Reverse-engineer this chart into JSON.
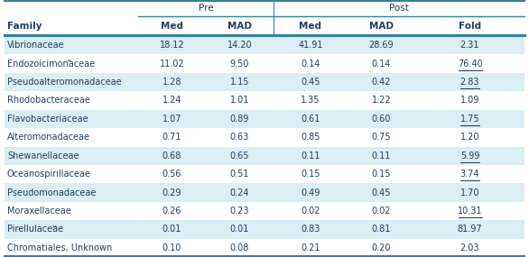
{
  "rows": [
    [
      "Vibrionaceae",
      "18.12",
      "14.20",
      "41.91",
      "28.69",
      "2.31"
    ],
    [
      "Endozoicimonaceae**",
      "11.02",
      "9.50",
      "0.14",
      "0.14",
      "76.40"
    ],
    [
      "Pseudoalteromonadaceae",
      "1.28",
      "1.15",
      "0.45",
      "0.42",
      "2.83"
    ],
    [
      "Rhodobacteraceae",
      "1.24",
      "1.01",
      "1.35",
      "1.22",
      "1.09"
    ],
    [
      "Flavobacteriaceae",
      "1.07",
      "0.89",
      "0.61",
      "0.60",
      "1.75"
    ],
    [
      "Alteromonadaceae",
      "0.71",
      "0.63",
      "0.85",
      "0.75",
      "1.20"
    ],
    [
      "Shewanellaceae",
      "0.68",
      "0.65",
      "0.11",
      "0.11",
      "5.99"
    ],
    [
      "Oceanospirillaceae",
      "0.56",
      "0.51",
      "0.15",
      "0.15",
      "3.74"
    ],
    [
      "Pseudomonadaceae",
      "0.29",
      "0.24",
      "0.49",
      "0.45",
      "1.70"
    ],
    [
      "Moraxellaceae",
      "0.26",
      "0.23",
      "0.02",
      "0.02",
      "10.31"
    ],
    [
      "Pirellulaceae**",
      "0.01",
      "0.01",
      "0.83",
      "0.81",
      "81.97"
    ],
    [
      "Chromatiales, Unknown",
      "0.10",
      "0.08",
      "0.21",
      "0.20",
      "2.03"
    ]
  ],
  "superscript_rows": [
    1,
    10
  ],
  "col_headers": [
    "Family",
    "Med",
    "MAD",
    "Med",
    "MAD",
    "Fold"
  ],
  "group_headers": [
    "Pre",
    "Post"
  ],
  "bg_color_even": "#daeef3",
  "bg_color_odd": "#ffffff",
  "teal_line_color": "#31849b",
  "text_color": "#243f60",
  "fold_underline": [
    false,
    true,
    true,
    false,
    true,
    false,
    true,
    true,
    false,
    true,
    false,
    false
  ],
  "figw": 5.86,
  "figh": 2.85,
  "dpi": 100
}
